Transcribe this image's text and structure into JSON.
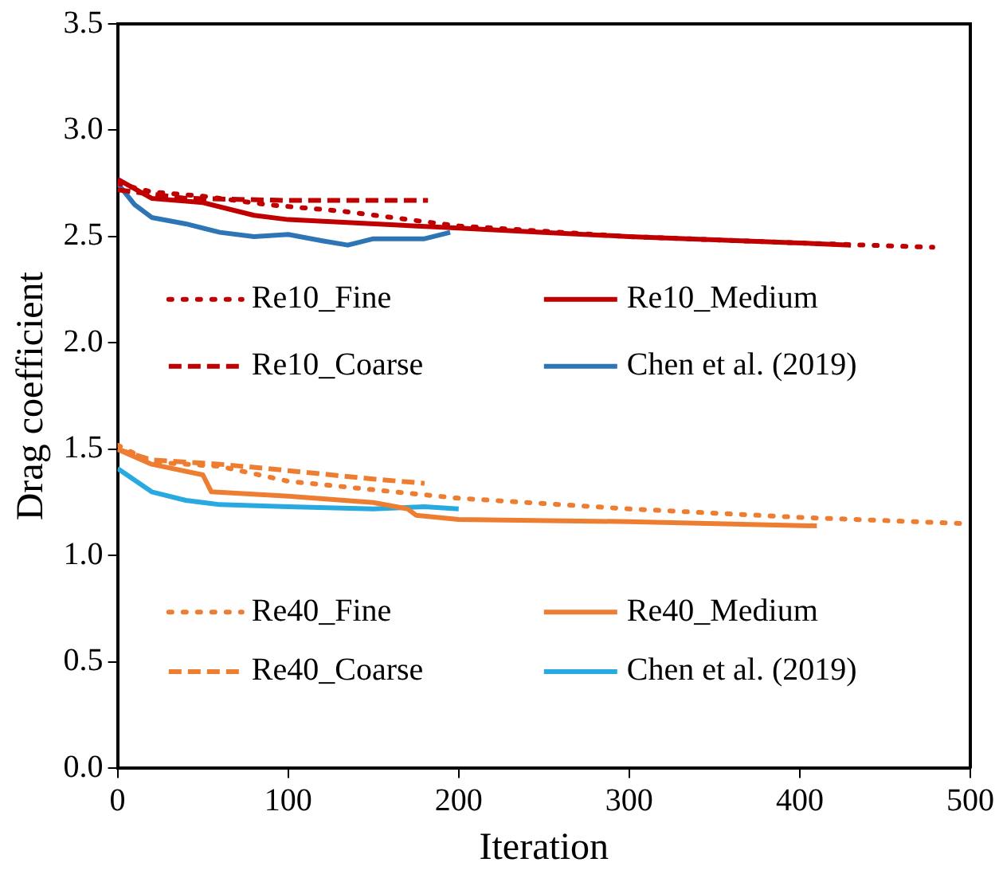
{
  "chart_data": {
    "type": "line",
    "xlabel": "Iteration",
    "ylabel": "Drag coefficient",
    "xlim": [
      0,
      500
    ],
    "xticks": [
      0,
      100,
      200,
      300,
      400,
      500
    ],
    "ylim": [
      0,
      3.5
    ],
    "yticks": [
      {
        "value": 0,
        "label": "0.0"
      },
      0.5,
      {
        "value": 1,
        "label": "1.0"
      },
      1.5,
      {
        "value": 2,
        "label": "2.0"
      },
      2.5,
      {
        "value": 3,
        "label": "3.0"
      },
      3.5
    ],
    "grid": false,
    "legend": "center",
    "marker": "none",
    "series": [
      {
        "name": "Re10_Fine",
        "color": "#c00000",
        "line_style": "dotted",
        "x": [
          0,
          20,
          50,
          88,
          131,
          200,
          300,
          400,
          478
        ],
        "values": [
          2.75,
          2.71,
          2.69,
          2.65,
          2.62,
          2.55,
          2.5,
          2.47,
          2.45
        ]
      },
      {
        "name": "Re10_Medium",
        "color": "#c00000",
        "line_style": "solid",
        "x": [
          0,
          20,
          50,
          80,
          100,
          200,
          250,
          300,
          400,
          430
        ],
        "values": [
          2.77,
          2.68,
          2.66,
          2.6,
          2.58,
          2.54,
          2.52,
          2.5,
          2.47,
          2.46
        ]
      },
      {
        "name": "Re10_Coarse",
        "color": "#c00000",
        "line_style": "dashed",
        "x": [
          0,
          40,
          100,
          182
        ],
        "values": [
          2.72,
          2.68,
          2.67,
          2.67
        ]
      },
      {
        "name": "Chen et al. (2019)",
        "color": "#2e75b6",
        "line_style": "solid",
        "x": [
          0,
          10,
          20,
          40,
          60,
          80,
          100,
          120,
          135,
          150,
          180,
          195
        ],
        "values": [
          2.75,
          2.65,
          2.59,
          2.56,
          2.52,
          2.5,
          2.51,
          2.48,
          2.46,
          2.49,
          2.49,
          2.52
        ]
      },
      {
        "name": "Re40_Fine",
        "color": "#ed7d31",
        "line_style": "dotted",
        "x": [
          0,
          20,
          60,
          100,
          150,
          200,
          300,
          400,
          500
        ],
        "values": [
          1.52,
          1.44,
          1.42,
          1.35,
          1.31,
          1.27,
          1.22,
          1.18,
          1.15
        ]
      },
      {
        "name": "Re40_Medium",
        "color": "#ed7d31",
        "line_style": "solid",
        "x": [
          0,
          20,
          50,
          55,
          100,
          150,
          170,
          175,
          200,
          300,
          410
        ],
        "values": [
          1.5,
          1.43,
          1.38,
          1.3,
          1.28,
          1.25,
          1.22,
          1.19,
          1.17,
          1.16,
          1.14
        ]
      },
      {
        "name": "Re40_Coarse",
        "color": "#ed7d31",
        "line_style": "dashed",
        "x": [
          0,
          20,
          60,
          100,
          150,
          180
        ],
        "values": [
          1.5,
          1.45,
          1.43,
          1.4,
          1.36,
          1.34
        ]
      },
      {
        "name": "Chen et al. (2019)",
        "color": "#28aae1",
        "line_style": "solid",
        "x": [
          0,
          20,
          40,
          60,
          100,
          150,
          180,
          200
        ],
        "values": [
          1.41,
          1.3,
          1.26,
          1.24,
          1.23,
          1.22,
          1.23,
          1.22
        ]
      }
    ]
  }
}
